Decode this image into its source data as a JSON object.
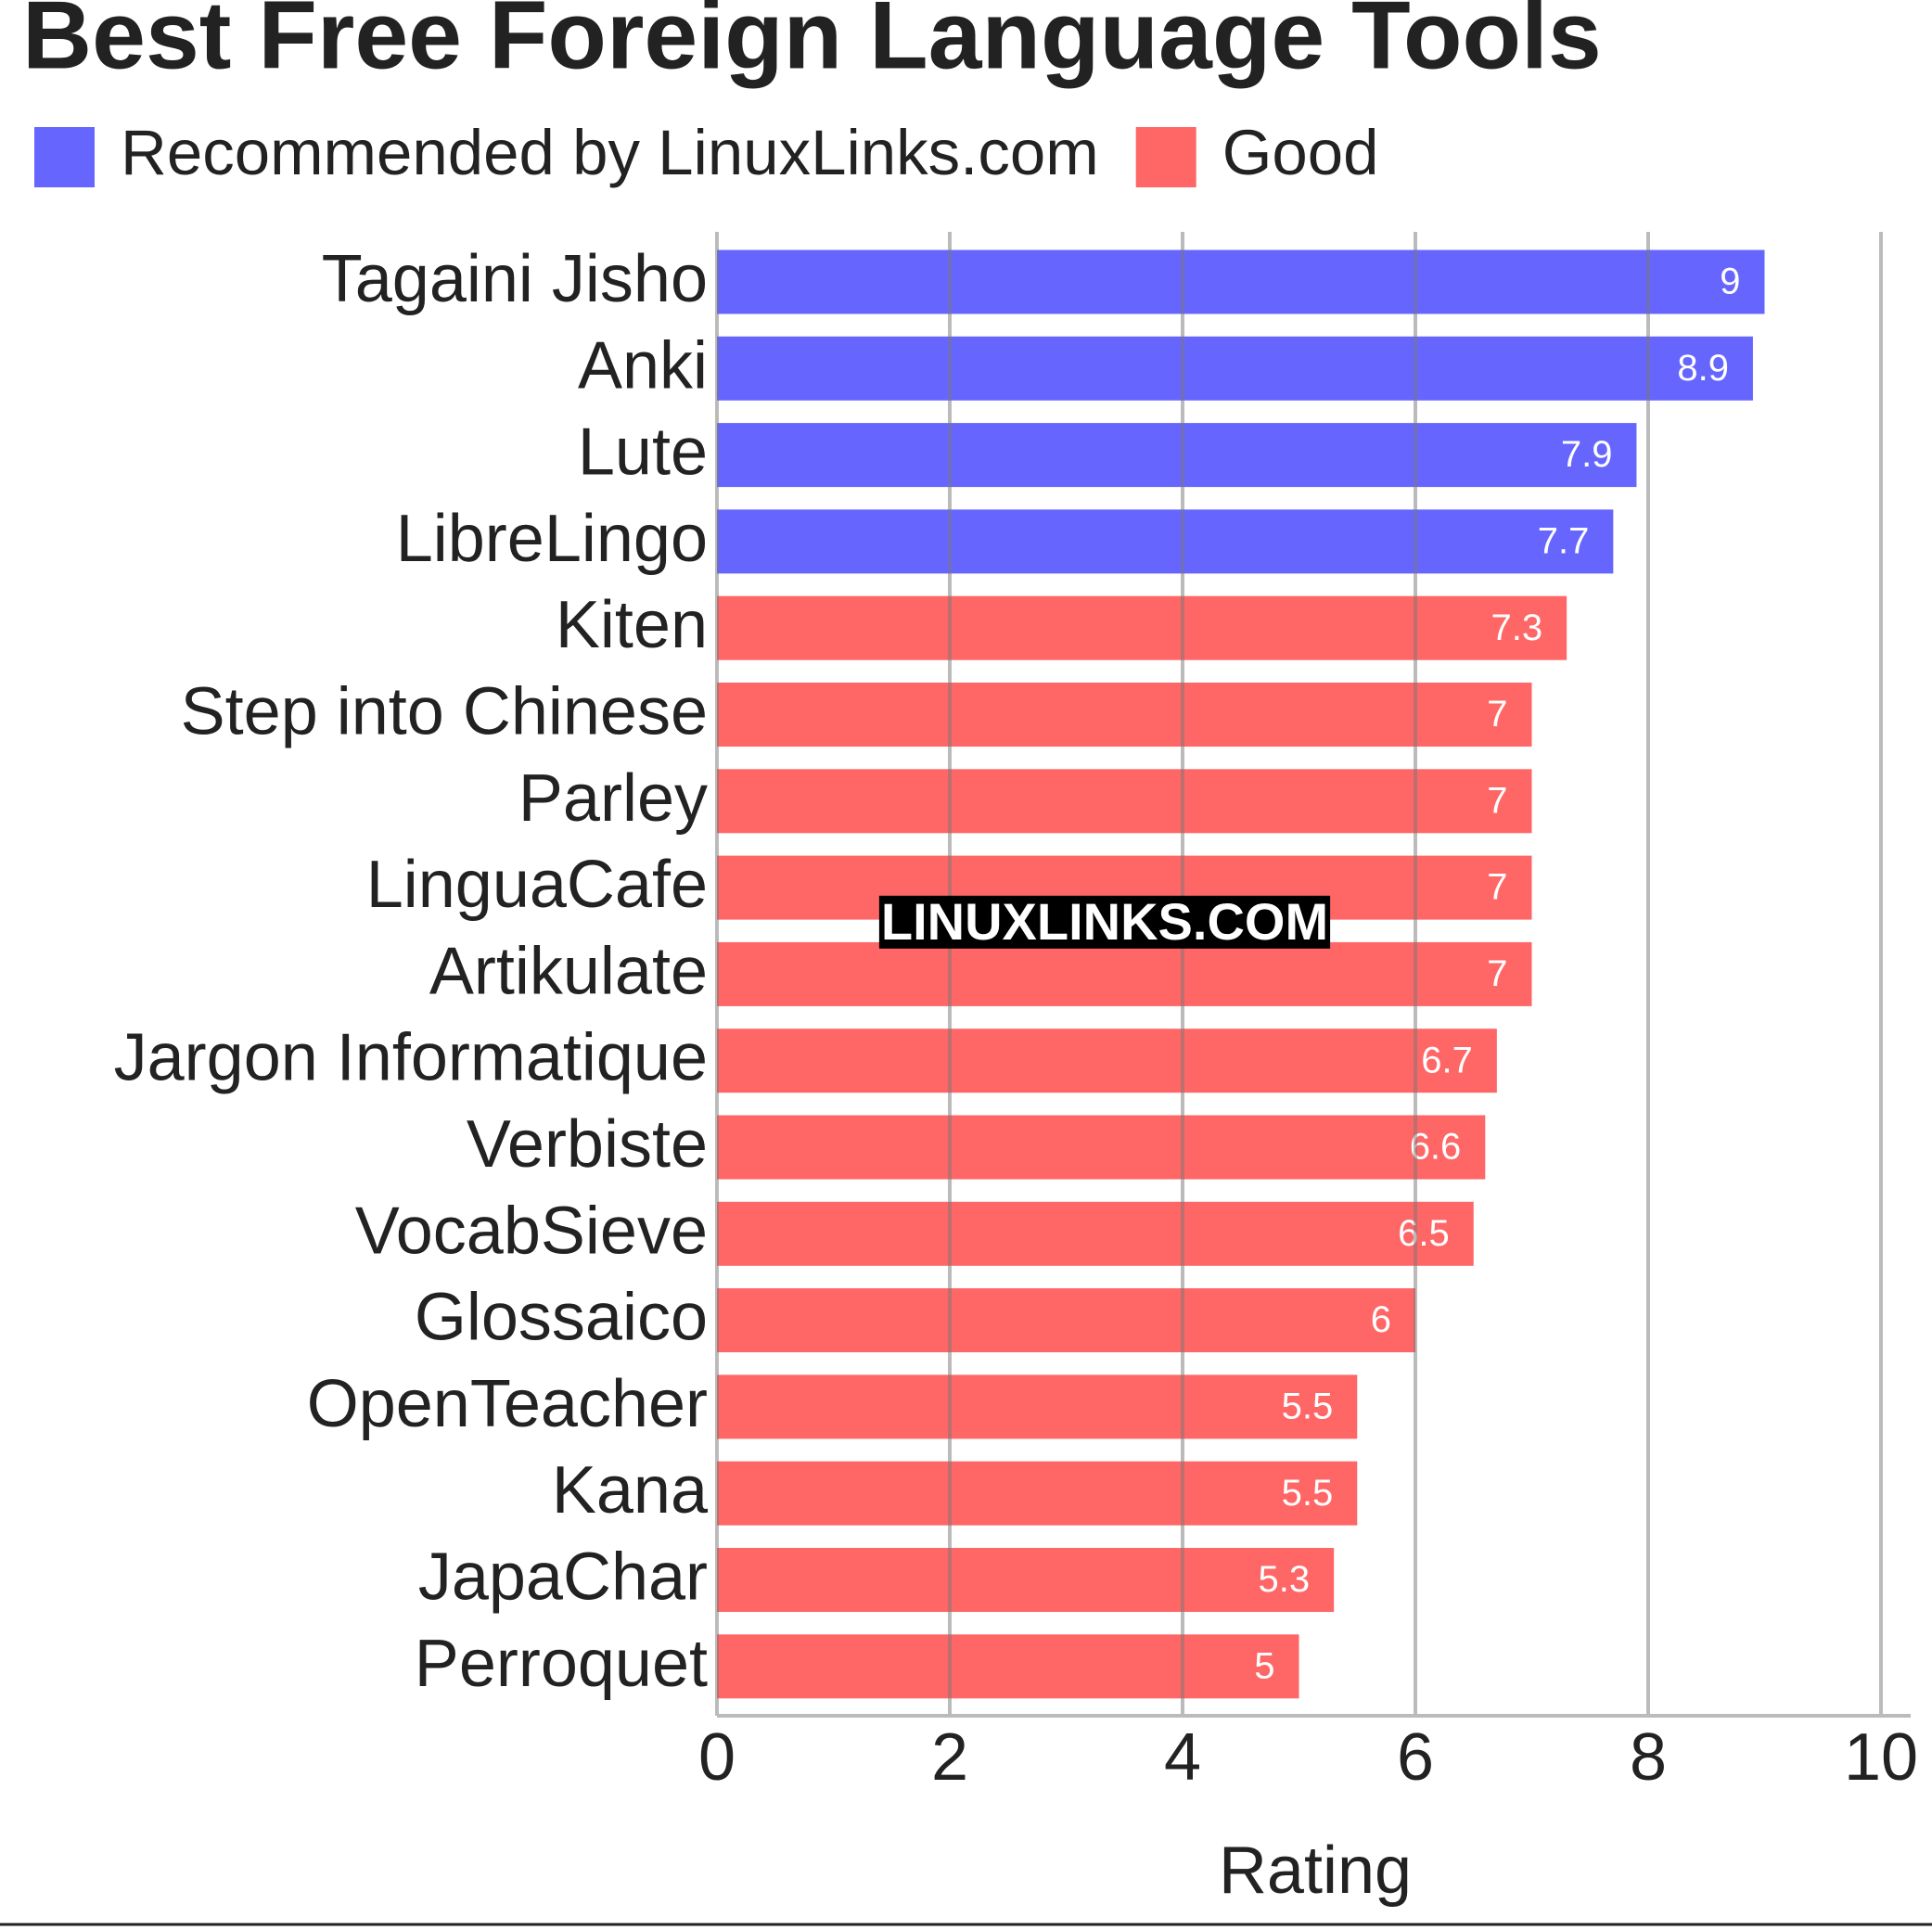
{
  "chart_data": {
    "type": "bar",
    "orientation": "horizontal",
    "title": "Best Free Foreign Language Tools",
    "categories": [
      "Tagaini Jisho",
      "Anki",
      "Lute",
      "LibreLingo",
      "Kiten",
      "Step into Chinese",
      "Parley",
      "LinguaCafe",
      "Artikulate",
      "Jargon Informatique",
      "Verbiste",
      "VocabSieve",
      "Glossaico",
      "OpenTeacher",
      "Kana",
      "JapaChar",
      "Perroquet"
    ],
    "series": [
      {
        "name": "Recommended by LinuxLinks.com",
        "color": "#6666ff",
        "values": [
          9,
          8.9,
          7.9,
          7.7,
          null,
          null,
          null,
          null,
          null,
          null,
          null,
          null,
          null,
          null,
          null,
          null,
          null
        ]
      },
      {
        "name": "Good",
        "color": "#ff6666",
        "values": [
          null,
          null,
          null,
          null,
          7.3,
          7,
          7,
          7,
          7,
          6.7,
          6.6,
          6.5,
          6,
          5.5,
          5.5,
          5.3,
          5
        ]
      }
    ],
    "xlabel": "Rating",
    "xlim": [
      0,
      10
    ],
    "xticks": [
      0,
      2,
      4,
      6,
      8,
      10
    ],
    "grid": true,
    "watermark": "LINUXLINKS.COM"
  }
}
